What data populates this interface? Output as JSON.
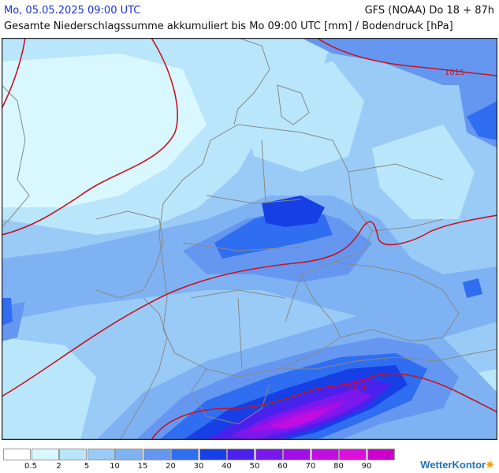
{
  "header": {
    "datetime": "Mo, 05.05.2025 09:00 UTC",
    "model": "GFS (NOAA) Do 18 + 87h",
    "subtitle": "Gesamte Niederschlagssumme akkumuliert bis Mo 09:00 UTC [mm] / Bodendruck [hPa]"
  },
  "map": {
    "region": "Deutschland / Mitteleuropa",
    "isobar_color": "#c8141e",
    "border_color": "#888888",
    "isobar_labels": [
      "1015",
      "1010"
    ]
  },
  "legend": {
    "bins": [
      {
        "label": "0.5",
        "color": "#ffffff"
      },
      {
        "label": "2",
        "color": "#d9f7ff"
      },
      {
        "label": "5",
        "color": "#b9e6fb"
      },
      {
        "label": "10",
        "color": "#9acbf7"
      },
      {
        "label": "15",
        "color": "#7fb2f2"
      },
      {
        "label": "20",
        "color": "#6697f0"
      },
      {
        "label": "30",
        "color": "#2f6ef0"
      },
      {
        "label": "40",
        "color": "#1640e6"
      },
      {
        "label": "50",
        "color": "#4a20ec"
      },
      {
        "label": "60",
        "color": "#7a18ee"
      },
      {
        "label": "70",
        "color": "#a010e6"
      },
      {
        "label": "80",
        "color": "#c00ee2"
      },
      {
        "label": "90",
        "color": "#dc10dc"
      },
      {
        "label": "",
        "color": "#cc00cc"
      }
    ]
  },
  "brand": {
    "name": "WetterKontor",
    "icon": "sun-cloud-icon"
  }
}
